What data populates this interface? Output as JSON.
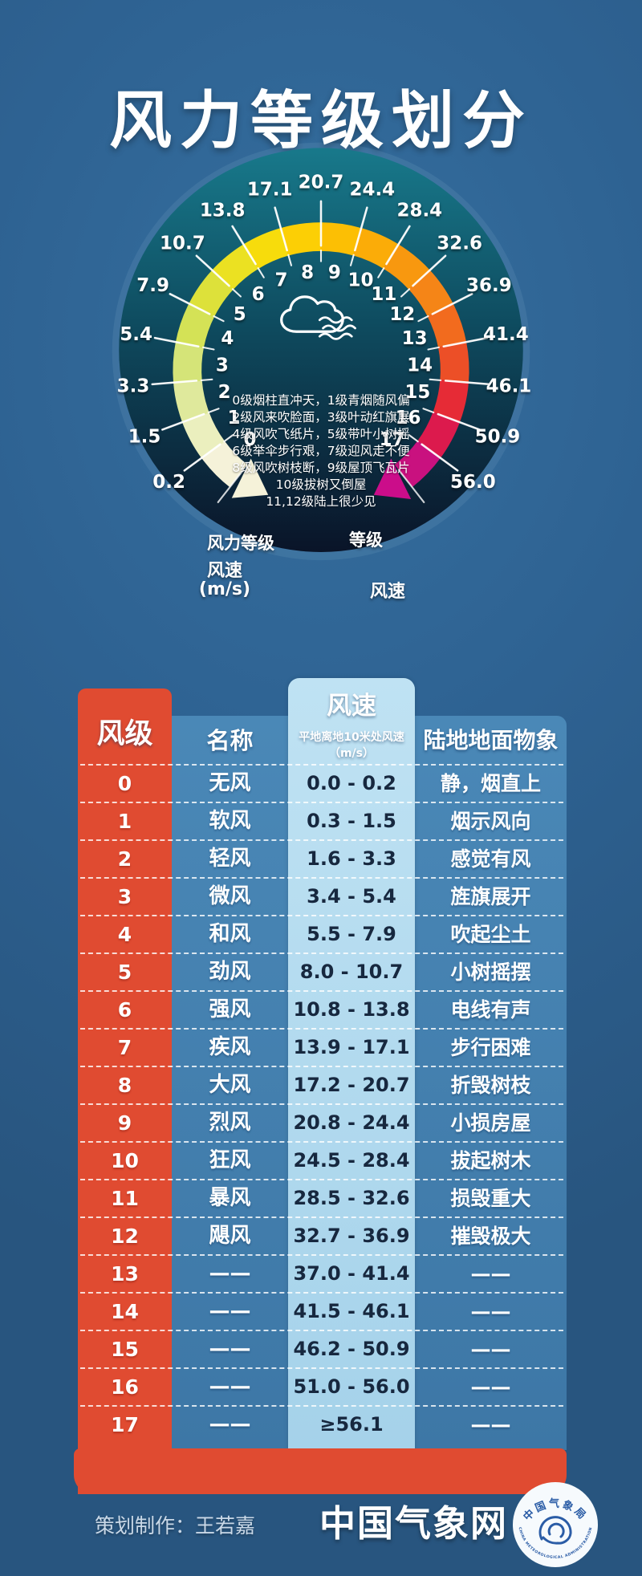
{
  "title": "风力等级划分",
  "gauge": {
    "speed_ticks": [
      "0.2",
      "1.5",
      "3.3",
      "5.4",
      "7.9",
      "10.7",
      "13.8",
      "17.1",
      "20.7",
      "24.4",
      "28.4",
      "32.6",
      "36.9",
      "41.4",
      "46.1",
      "50.9",
      "56.0"
    ],
    "levels": [
      "0",
      "1",
      "2",
      "3",
      "4",
      "5",
      "6",
      "7",
      "8",
      "9",
      "10",
      "11",
      "12",
      "13",
      "14",
      "15",
      "16",
      "17"
    ],
    "segment_colors": [
      "#f5f2d9",
      "#ebefbe",
      "#dfe99c",
      "#d5e478",
      "#d4e256",
      "#dde13a",
      "#ebe122",
      "#f7dc0c",
      "#fccf05",
      "#fcbf04",
      "#fbac08",
      "#f8980f",
      "#f58517",
      "#f26b1e",
      "#ec4f27",
      "#e62b36",
      "#dc1a4d",
      "#c9117f"
    ],
    "center_lines": [
      "0级烟柱直冲天，1级青烟随风偏",
      "2级风来吹脸面，3级叶动红旗展",
      "4级风吹飞纸片，5级带叶小树摇",
      "6级举伞步行艰，7级迎风走不便",
      "8级风吹树枝断，9级屋顶飞瓦片",
      "10级拔树又倒屋",
      "11,12级陆上很少见"
    ],
    "icon": "cloud-wind-icon",
    "label_level_left": "风力等级",
    "label_level_right": "等级",
    "label_speed_left": "风速",
    "label_speed_left_unit": "(m/s)",
    "label_speed_right": "风速"
  },
  "table": {
    "headers": {
      "level": "风级",
      "name": "名称",
      "speed": "风速",
      "speed_sub": "平地离地10米处风速",
      "speed_unit": "（m/s）",
      "phenomena": "陆地地面物象"
    },
    "rows": [
      {
        "level": "0",
        "name": "无风",
        "speed": "0.0 - 0.2",
        "phenomena": "静，烟直上"
      },
      {
        "level": "1",
        "name": "软风",
        "speed": "0.3 - 1.5",
        "phenomena": "烟示风向"
      },
      {
        "level": "2",
        "name": "轻风",
        "speed": "1.6 - 3.3",
        "phenomena": "感觉有风"
      },
      {
        "level": "3",
        "name": "微风",
        "speed": "3.4 - 5.4",
        "phenomena": "旌旗展开"
      },
      {
        "level": "4",
        "name": "和风",
        "speed": "5.5 - 7.9",
        "phenomena": "吹起尘土"
      },
      {
        "level": "5",
        "name": "劲风",
        "speed": "8.0 - 10.7",
        "phenomena": "小树摇摆"
      },
      {
        "level": "6",
        "name": "强风",
        "speed": "10.8 - 13.8",
        "phenomena": "电线有声"
      },
      {
        "level": "7",
        "name": "疾风",
        "speed": "13.9 - 17.1",
        "phenomena": "步行困难"
      },
      {
        "level": "8",
        "name": "大风",
        "speed": "17.2 - 20.7",
        "phenomena": "折毁树枝"
      },
      {
        "level": "9",
        "name": "烈风",
        "speed": "20.8 - 24.4",
        "phenomena": "小损房屋"
      },
      {
        "level": "10",
        "name": "狂风",
        "speed": "24.5 - 28.4",
        "phenomena": "拔起树木"
      },
      {
        "level": "11",
        "name": "暴风",
        "speed": "28.5 - 32.6",
        "phenomena": "损毁重大"
      },
      {
        "level": "12",
        "name": "飓风",
        "speed": "32.7 - 36.9",
        "phenomena": "摧毁极大"
      },
      {
        "level": "13",
        "name": "——",
        "speed": "37.0 - 41.4",
        "phenomena": "——"
      },
      {
        "level": "14",
        "name": "——",
        "speed": "41.5 - 46.1",
        "phenomena": "——"
      },
      {
        "level": "15",
        "name": "——",
        "speed": "46.2 - 50.9",
        "phenomena": "——"
      },
      {
        "level": "16",
        "name": "——",
        "speed": "51.0 - 56.0",
        "phenomena": "——"
      },
      {
        "level": "17",
        "name": "——",
        "speed": "≥56.1",
        "phenomena": "——"
      }
    ]
  },
  "footer": {
    "credit": "策划制作：王若嘉",
    "site": "中国气象网",
    "logo_top": "中国气象局",
    "logo_bottom": "CHINA METEOROLOGICAL ADMINISTRATION"
  },
  "colors": {
    "background": "#2e6292",
    "dial_top": "#18798b",
    "dial_bottom": "#0a1428",
    "table_red": "#e04b31",
    "panel_blue": "#4484b4",
    "speed_col_blue": "#aad5ec",
    "speed_text_navy": "#17283f",
    "arrow_start_cream": "#f5f2d9",
    "arrow_end_magenta": "#cb0d8a",
    "logo_blue": "#2a5ca6"
  }
}
